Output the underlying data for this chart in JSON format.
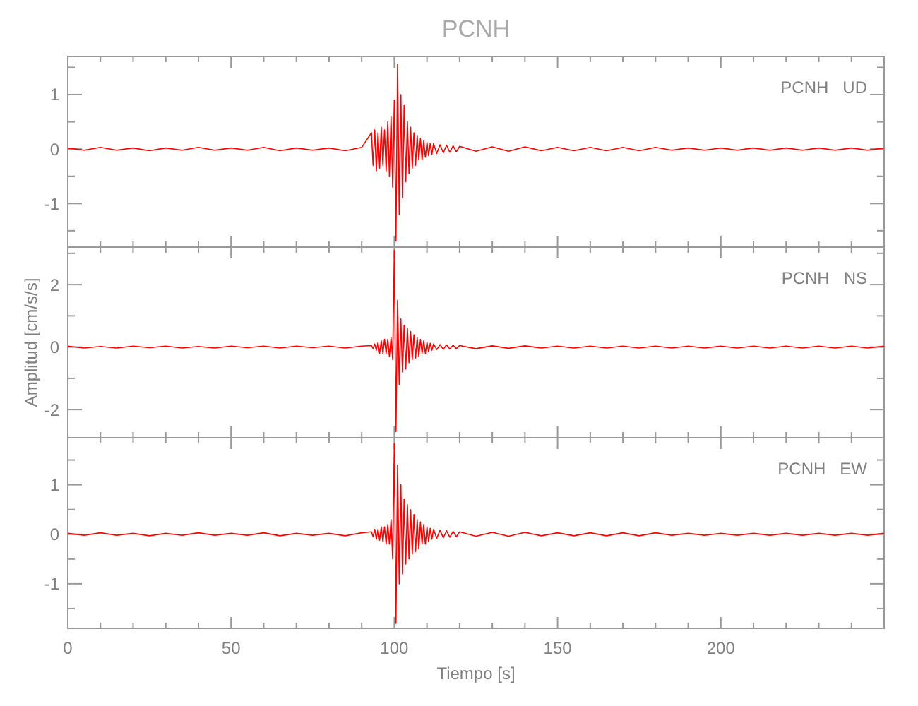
{
  "chart_data": [
    {
      "type": "line",
      "title": "PCNH",
      "annotations": [
        "PCNH   UD"
      ],
      "tick_labels": "y",
      "xlim": [
        0,
        250
      ],
      "ylim": [
        -1.8,
        1.7
      ],
      "xticks": [
        0,
        {
          "value": 10,
          "label": null
        },
        {
          "value": 20,
          "label": null
        },
        {
          "value": 30,
          "label": null
        },
        {
          "value": 40,
          "label": null
        },
        50,
        {
          "value": 60,
          "label": null
        },
        {
          "value": 70,
          "label": null
        },
        {
          "value": 80,
          "label": null
        },
        {
          "value": 90,
          "label": null
        },
        100,
        {
          "value": 110,
          "label": null
        },
        {
          "value": 120,
          "label": null
        },
        {
          "value": 130,
          "label": null
        },
        {
          "value": 140,
          "label": null
        },
        150,
        {
          "value": 160,
          "label": null
        },
        {
          "value": 170,
          "label": null
        },
        {
          "value": 180,
          "label": null
        },
        {
          "value": 190,
          "label": null
        },
        200,
        {
          "value": 210,
          "label": null
        },
        {
          "value": 220,
          "label": null
        },
        {
          "value": 230,
          "label": null
        },
        {
          "value": 240,
          "label": null
        }
      ],
      "yticks": [
        {
          "value": -1.5,
          "label": null
        },
        -1,
        {
          "value": -0.5,
          "label": null
        },
        0,
        {
          "value": 0.5,
          "label": null
        },
        1,
        {
          "value": 1.5,
          "label": null
        }
      ],
      "x": [
        0,
        5,
        10,
        15,
        20,
        25,
        30,
        35,
        40,
        45,
        50,
        55,
        60,
        65,
        70,
        75,
        80,
        85,
        90,
        93,
        93.5,
        94,
        94.5,
        95,
        95.5,
        96,
        96.5,
        97,
        97.5,
        98,
        98.5,
        99,
        99.5,
        100,
        100.5,
        101,
        101.5,
        102,
        102.5,
        103,
        103.5,
        104,
        104.5,
        105,
        105.5,
        106,
        106.5,
        107,
        107.5,
        108,
        108.5,
        109,
        109.5,
        110,
        110.5,
        111,
        111.5,
        112,
        113,
        114,
        115,
        116,
        117,
        118,
        119,
        120,
        125,
        130,
        135,
        140,
        145,
        150,
        155,
        160,
        165,
        170,
        175,
        180,
        185,
        190,
        195,
        200,
        205,
        210,
        215,
        220,
        225,
        230,
        235,
        240,
        245,
        250
      ],
      "series": [
        {
          "color": "#ff0000",
          "values": [
            0.02,
            -0.02,
            0.03,
            -0.02,
            0.02,
            -0.03,
            0.02,
            -0.02,
            0.03,
            -0.02,
            0.02,
            -0.02,
            0.03,
            -0.03,
            0.02,
            -0.02,
            0.02,
            -0.03,
            0.03,
            0.3,
            -0.3,
            0.35,
            -0.4,
            0.3,
            -0.35,
            0.4,
            -0.3,
            0.35,
            -0.4,
            0.5,
            -0.5,
            0.6,
            -0.7,
            0.9,
            -1.69,
            1.56,
            -1.2,
            1.0,
            -0.9,
            0.8,
            -0.6,
            0.5,
            -0.45,
            0.4,
            -0.35,
            0.3,
            -0.3,
            0.25,
            -0.2,
            0.2,
            -0.2,
            0.15,
            -0.15,
            0.12,
            -0.12,
            0.1,
            -0.1,
            0.1,
            -0.08,
            0.08,
            -0.07,
            0.07,
            -0.06,
            0.06,
            -0.05,
            0.05,
            -0.04,
            0.04,
            -0.04,
            0.04,
            -0.03,
            0.03,
            -0.03,
            0.03,
            -0.03,
            0.03,
            -0.03,
            0.03,
            -0.02,
            0.02,
            -0.02,
            0.02,
            -0.02,
            0.02,
            -0.02,
            0.02,
            -0.02,
            0.02,
            -0.02,
            0.02,
            -0.02,
            0.02
          ]
        }
      ]
    },
    {
      "type": "line",
      "ylabel": "Amplitud [cm/s/s]",
      "annotations": [
        "PCNH   NS"
      ],
      "tick_labels": "y",
      "xlim": [
        0,
        250
      ],
      "ylim": [
        -2.9,
        3.2
      ],
      "xticks": [
        0,
        {
          "value": 10,
          "label": null
        },
        {
          "value": 20,
          "label": null
        },
        {
          "value": 30,
          "label": null
        },
        {
          "value": 40,
          "label": null
        },
        50,
        {
          "value": 60,
          "label": null
        },
        {
          "value": 70,
          "label": null
        },
        {
          "value": 80,
          "label": null
        },
        {
          "value": 90,
          "label": null
        },
        100,
        {
          "value": 110,
          "label": null
        },
        {
          "value": 120,
          "label": null
        },
        {
          "value": 130,
          "label": null
        },
        {
          "value": 140,
          "label": null
        },
        150,
        {
          "value": 160,
          "label": null
        },
        {
          "value": 170,
          "label": null
        },
        {
          "value": 180,
          "label": null
        },
        {
          "value": 190,
          "label": null
        },
        200,
        {
          "value": 210,
          "label": null
        },
        {
          "value": 220,
          "label": null
        },
        {
          "value": 230,
          "label": null
        },
        {
          "value": 240,
          "label": null
        }
      ],
      "yticks": [
        -2,
        {
          "value": -1,
          "label": null
        },
        0,
        {
          "value": 1,
          "label": null
        },
        2,
        {
          "value": 3,
          "label": null
        }
      ],
      "x": [
        0,
        5,
        10,
        15,
        20,
        25,
        30,
        35,
        40,
        45,
        50,
        55,
        60,
        65,
        70,
        75,
        80,
        85,
        90,
        93,
        93.5,
        94,
        94.5,
        95,
        95.5,
        96,
        96.5,
        97,
        97.5,
        98,
        98.5,
        99,
        99.5,
        100,
        100.5,
        101,
        101.5,
        102,
        102.5,
        103,
        103.5,
        104,
        104.5,
        105,
        105.5,
        106,
        106.5,
        107,
        107.5,
        108,
        108.5,
        109,
        109.5,
        110,
        110.5,
        111,
        111.5,
        112,
        113,
        114,
        115,
        116,
        117,
        118,
        119,
        120,
        125,
        130,
        135,
        140,
        145,
        150,
        155,
        160,
        165,
        170,
        175,
        180,
        185,
        190,
        195,
        200,
        205,
        210,
        215,
        220,
        225,
        230,
        235,
        240,
        245,
        250
      ],
      "series": [
        {
          "color": "#ff0000",
          "values": [
            0.03,
            -0.03,
            0.02,
            -0.03,
            0.03,
            -0.02,
            0.03,
            -0.03,
            0.02,
            -0.03,
            0.03,
            -0.02,
            0.03,
            -0.03,
            0.03,
            -0.02,
            0.03,
            -0.03,
            0.03,
            0.05,
            -0.05,
            0.1,
            -0.1,
            0.15,
            -0.2,
            0.2,
            -0.2,
            0.25,
            -0.2,
            0.25,
            -0.3,
            0.3,
            -0.4,
            3.1,
            -2.7,
            1.5,
            -1.2,
            0.9,
            -0.8,
            0.7,
            -0.7,
            0.6,
            -0.5,
            0.5,
            -0.4,
            0.4,
            -0.35,
            0.3,
            -0.3,
            0.25,
            -0.2,
            0.2,
            -0.2,
            0.15,
            -0.15,
            0.12,
            -0.1,
            0.1,
            -0.08,
            0.08,
            -0.07,
            0.07,
            -0.06,
            0.06,
            -0.05,
            0.05,
            -0.05,
            0.04,
            -0.04,
            0.04,
            -0.03,
            0.03,
            -0.03,
            0.03,
            -0.03,
            0.03,
            -0.03,
            0.03,
            -0.03,
            0.03,
            -0.03,
            0.03,
            -0.03,
            0.03,
            -0.03,
            0.03,
            -0.03,
            0.03,
            -0.03,
            0.03,
            -0.03,
            0.03
          ]
        }
      ]
    },
    {
      "type": "line",
      "xlabel": "Tiempo [s]",
      "annotations": [
        "PCNH   EW"
      ],
      "xlim": [
        0,
        250
      ],
      "ylim": [
        -1.9,
        1.95
      ],
      "xticks": [
        0,
        {
          "value": 10,
          "label": null
        },
        {
          "value": 20,
          "label": null
        },
        {
          "value": 30,
          "label": null
        },
        {
          "value": 40,
          "label": null
        },
        50,
        {
          "value": 60,
          "label": null
        },
        {
          "value": 70,
          "label": null
        },
        {
          "value": 80,
          "label": null
        },
        {
          "value": 90,
          "label": null
        },
        100,
        {
          "value": 110,
          "label": null
        },
        {
          "value": 120,
          "label": null
        },
        {
          "value": 130,
          "label": null
        },
        {
          "value": 140,
          "label": null
        },
        150,
        {
          "value": 160,
          "label": null
        },
        {
          "value": 170,
          "label": null
        },
        {
          "value": 180,
          "label": null
        },
        {
          "value": 190,
          "label": null
        },
        200,
        {
          "value": 210,
          "label": null
        },
        {
          "value": 220,
          "label": null
        },
        {
          "value": 230,
          "label": null
        },
        {
          "value": 240,
          "label": null
        }
      ],
      "yticks": [
        {
          "value": -1.5,
          "label": null
        },
        -1,
        {
          "value": -0.5,
          "label": null
        },
        0,
        {
          "value": 0.5,
          "label": null
        },
        1,
        {
          "value": 1.5,
          "label": null
        }
      ],
      "x": [
        0,
        5,
        10,
        15,
        20,
        25,
        30,
        35,
        40,
        45,
        50,
        55,
        60,
        65,
        70,
        75,
        80,
        85,
        90,
        93,
        93.5,
        94,
        94.5,
        95,
        95.5,
        96,
        96.5,
        97,
        97.5,
        98,
        98.5,
        99,
        99.5,
        100,
        100.5,
        101,
        101.5,
        102,
        102.5,
        103,
        103.5,
        104,
        104.5,
        105,
        105.5,
        106,
        106.5,
        107,
        107.5,
        108,
        108.5,
        109,
        109.5,
        110,
        110.5,
        111,
        111.5,
        112,
        113,
        114,
        115,
        116,
        117,
        118,
        119,
        120,
        125,
        130,
        135,
        140,
        145,
        150,
        155,
        160,
        165,
        170,
        175,
        180,
        185,
        190,
        195,
        200,
        205,
        210,
        215,
        220,
        225,
        230,
        235,
        240,
        245,
        250
      ],
      "series": [
        {
          "color": "#ff0000",
          "values": [
            0.02,
            -0.02,
            0.03,
            -0.02,
            0.02,
            -0.03,
            0.02,
            -0.02,
            0.03,
            -0.02,
            0.02,
            -0.02,
            0.03,
            -0.03,
            0.02,
            -0.02,
            0.02,
            -0.03,
            0.03,
            0.05,
            -0.05,
            0.1,
            -0.1,
            0.1,
            -0.12,
            0.15,
            -0.15,
            0.15,
            -0.2,
            0.2,
            -0.2,
            0.3,
            -0.5,
            1.83,
            -1.8,
            1.4,
            -1.0,
            1.0,
            -0.8,
            0.7,
            -0.6,
            0.6,
            -0.5,
            0.5,
            -0.4,
            0.4,
            -0.35,
            0.3,
            -0.3,
            0.25,
            -0.2,
            0.2,
            -0.2,
            0.15,
            -0.15,
            0.12,
            -0.1,
            0.1,
            -0.08,
            0.08,
            -0.07,
            0.07,
            -0.06,
            0.06,
            -0.05,
            0.05,
            -0.04,
            0.04,
            -0.04,
            0.04,
            -0.03,
            0.03,
            -0.03,
            0.03,
            -0.03,
            0.03,
            -0.03,
            0.03,
            -0.02,
            0.02,
            -0.02,
            0.02,
            -0.02,
            0.02,
            -0.02,
            0.02,
            -0.02,
            0.02,
            -0.02,
            0.02,
            -0.02,
            0.02
          ]
        }
      ]
    }
  ]
}
